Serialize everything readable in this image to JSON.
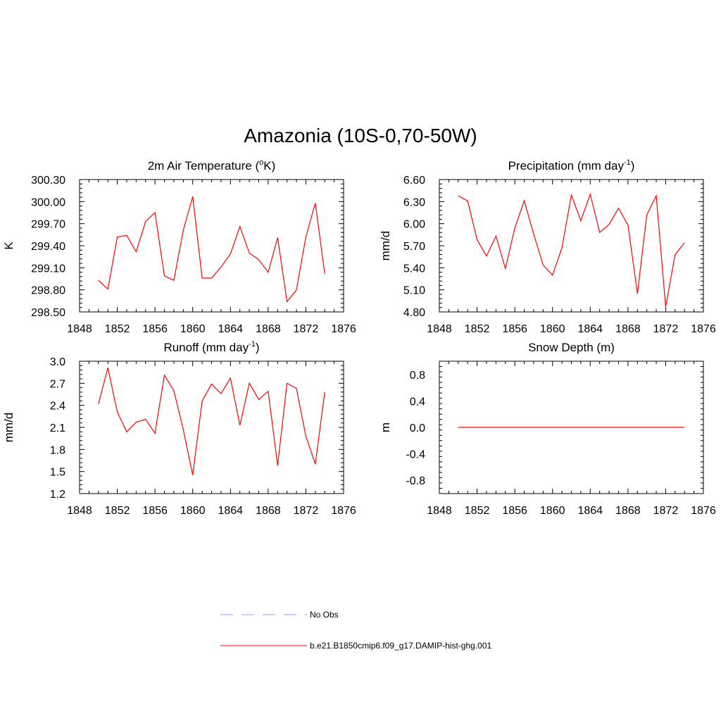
{
  "title": "Amazonia (10S-0,70-50W)",
  "chart_data": [
    {
      "type": "line",
      "title": "2m Air Temperature (",
      "title_sup": "o",
      "title_suffix": "K)",
      "ylabel": "K",
      "xlim": [
        1848,
        1876
      ],
      "ylim": [
        298.5,
        300.3
      ],
      "xticks": [
        1848,
        1852,
        1856,
        1860,
        1864,
        1868,
        1872,
        1876
      ],
      "yticks": [
        298.5,
        298.8,
        299.1,
        299.4,
        299.7,
        300.0,
        300.3
      ],
      "ytick_labels": [
        "298.50",
        "298.80",
        "299.10",
        "299.40",
        "299.70",
        "300.00",
        "300.30"
      ],
      "series": [
        {
          "color": "#ff0000",
          "x": [
            1850,
            1851,
            1852,
            1853,
            1854,
            1855,
            1856,
            1857,
            1858,
            1859,
            1860,
            1861,
            1862,
            1863,
            1864,
            1865,
            1866,
            1867,
            1868,
            1869,
            1870,
            1871,
            1872,
            1873,
            1874
          ],
          "values": [
            298.93,
            298.81,
            299.52,
            299.54,
            299.32,
            299.73,
            299.85,
            298.99,
            298.93,
            299.61,
            300.07,
            298.96,
            298.96,
            299.11,
            299.29,
            299.66,
            299.3,
            299.21,
            299.04,
            299.51,
            298.64,
            298.8,
            299.52,
            299.98,
            299.02
          ]
        }
      ]
    },
    {
      "type": "line",
      "title": "Precipitation (mm day",
      "title_sup": "-1",
      "title_suffix": ")",
      "ylabel": "mm/d",
      "xlim": [
        1848,
        1876
      ],
      "ylim": [
        4.8,
        6.6
      ],
      "xticks": [
        1848,
        1852,
        1856,
        1860,
        1864,
        1868,
        1872,
        1876
      ],
      "yticks": [
        4.8,
        5.1,
        5.4,
        5.7,
        6.0,
        6.3,
        6.6
      ],
      "ytick_labels": [
        "4.80",
        "5.10",
        "5.40",
        "5.70",
        "6.00",
        "6.30",
        "6.60"
      ],
      "series": [
        {
          "color": "#ff0000",
          "x": [
            1850,
            1851,
            1852,
            1853,
            1854,
            1855,
            1856,
            1857,
            1858,
            1859,
            1860,
            1861,
            1862,
            1863,
            1864,
            1865,
            1866,
            1867,
            1868,
            1869,
            1870,
            1871,
            1872,
            1873,
            1874
          ],
          "values": [
            6.38,
            6.31,
            5.78,
            5.56,
            5.83,
            5.39,
            5.94,
            6.31,
            5.86,
            5.44,
            5.3,
            5.67,
            6.39,
            6.04,
            6.4,
            5.88,
            5.99,
            6.21,
            5.98,
            5.05,
            6.12,
            6.38,
            4.87,
            5.58,
            5.74
          ]
        }
      ]
    },
    {
      "type": "line",
      "title": "Runoff (mm day",
      "title_sup": "-1",
      "title_suffix": ")",
      "ylabel": "mm/d",
      "xlim": [
        1848,
        1876
      ],
      "ylim": [
        1.2,
        3.0
      ],
      "xticks": [
        1848,
        1852,
        1856,
        1860,
        1864,
        1868,
        1872,
        1876
      ],
      "yticks": [
        1.2,
        1.5,
        1.8,
        2.1,
        2.4,
        2.7,
        3.0
      ],
      "ytick_labels": [
        "1.2",
        "1.5",
        "1.8",
        "2.1",
        "2.4",
        "2.7",
        "3.0"
      ],
      "series": [
        {
          "color": "#ff0000",
          "x": [
            1850,
            1851,
            1852,
            1853,
            1854,
            1855,
            1856,
            1857,
            1858,
            1859,
            1860,
            1861,
            1862,
            1863,
            1864,
            1865,
            1866,
            1867,
            1868,
            1869,
            1870,
            1871,
            1872,
            1873,
            1874
          ],
          "values": [
            2.42,
            2.91,
            2.31,
            2.04,
            2.17,
            2.21,
            2.02,
            2.81,
            2.6,
            2.07,
            1.45,
            2.46,
            2.69,
            2.56,
            2.77,
            2.13,
            2.7,
            2.48,
            2.59,
            1.58,
            2.7,
            2.63,
            1.98,
            1.6,
            2.58
          ]
        }
      ]
    },
    {
      "type": "line",
      "title": "Snow Depth (m)",
      "title_sup": "",
      "title_suffix": "",
      "ylabel": "m",
      "xlim": [
        1848,
        1876
      ],
      "ylim": [
        -1.0,
        1.0
      ],
      "xticks": [
        1848,
        1852,
        1856,
        1860,
        1864,
        1868,
        1872,
        1876
      ],
      "yticks": [
        -0.8,
        -0.4,
        0.0,
        0.4,
        0.8
      ],
      "ytick_labels": [
        "-0.8",
        "-0.4",
        "0.0",
        "0.4",
        "0.8"
      ],
      "series": [
        {
          "color": "#ff0000",
          "x": [
            1850,
            1874
          ],
          "values": [
            0,
            0
          ]
        }
      ]
    }
  ],
  "legend": [
    {
      "label": "No Obs",
      "color": "#9999ff",
      "dash": true
    },
    {
      "label": "b.e21.B1850cmip6.f09_g17.DAMIP-hist-ghg.001",
      "color": "#ff0000",
      "dash": false
    }
  ]
}
